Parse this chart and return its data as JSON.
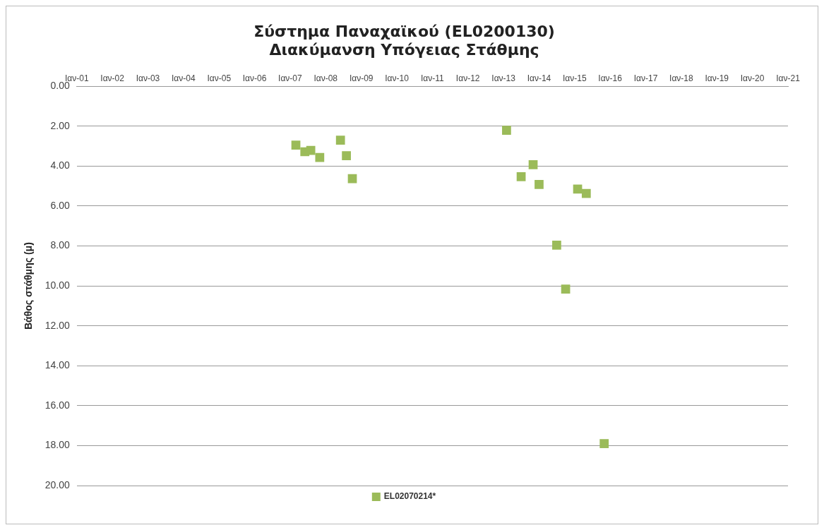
{
  "chart_data": {
    "type": "scatter",
    "title": "Σύστημα Παναχαϊκού (EL0200130)",
    "subtitle": "Διακύμανση Υπόγειας Στάθμης",
    "ylabel": "Βάθος στάθμης (μ)",
    "series": [
      {
        "name": "EL02070214*",
        "color": "#9bbb59",
        "x": [
          "2007-03",
          "2007-06",
          "2007-08",
          "2007-11",
          "2008-06",
          "2008-08",
          "2008-10",
          "2013-02",
          "2013-07",
          "2013-11",
          "2014-01",
          "2014-07",
          "2014-10",
          "2015-02",
          "2015-05",
          "2015-11"
        ],
        "values": [
          2.95,
          3.28,
          3.21,
          3.57,
          2.7,
          3.48,
          4.63,
          2.21,
          4.53,
          3.93,
          4.92,
          7.96,
          10.16,
          5.15,
          5.37,
          17.9
        ]
      }
    ],
    "xlim": [
      "2001-01",
      "2021-01"
    ],
    "xticks": [
      {
        "value": "2001-01",
        "label": "Ιαν-01"
      },
      {
        "value": "2002-01",
        "label": "Ιαν-02"
      },
      {
        "value": "2003-01",
        "label": "Ιαν-03"
      },
      {
        "value": "2004-01",
        "label": "Ιαν-04"
      },
      {
        "value": "2005-01",
        "label": "Ιαν-05"
      },
      {
        "value": "2006-01",
        "label": "Ιαν-06"
      },
      {
        "value": "2007-01",
        "label": "Ιαν-07"
      },
      {
        "value": "2008-01",
        "label": "Ιαν-08"
      },
      {
        "value": "2009-01",
        "label": "Ιαν-09"
      },
      {
        "value": "2010-01",
        "label": "Ιαν-10"
      },
      {
        "value": "2011-01",
        "label": "Ιαν-11"
      },
      {
        "value": "2012-01",
        "label": "Ιαν-12"
      },
      {
        "value": "2013-01",
        "label": "Ιαν-13"
      },
      {
        "value": "2014-01",
        "label": "Ιαν-14"
      },
      {
        "value": "2015-01",
        "label": "Ιαν-15"
      },
      {
        "value": "2016-01",
        "label": "Ιαν-16"
      },
      {
        "value": "2017-01",
        "label": "Ιαν-17"
      },
      {
        "value": "2018-01",
        "label": "Ιαν-18"
      },
      {
        "value": "2019-01",
        "label": "Ιαν-19"
      },
      {
        "value": "2020-01",
        "label": "Ιαν-20"
      },
      {
        "value": "2021-01",
        "label": "Ιαν-21"
      }
    ],
    "ylim": [
      20,
      0
    ],
    "yticks": [
      {
        "value": 0,
        "label": "0.00"
      },
      {
        "value": 2,
        "label": "2.00"
      },
      {
        "value": 4,
        "label": "4.00"
      },
      {
        "value": 6,
        "label": "6.00"
      },
      {
        "value": 8,
        "label": "8.00"
      },
      {
        "value": 10,
        "label": "10.00"
      },
      {
        "value": 12,
        "label": "12.00"
      },
      {
        "value": 14,
        "label": "14.00"
      },
      {
        "value": 16,
        "label": "16.00"
      },
      {
        "value": 18,
        "label": "18.00"
      },
      {
        "value": 20,
        "label": "20.00"
      }
    ],
    "grid": "y",
    "legend": "bottom",
    "marker": "square"
  }
}
